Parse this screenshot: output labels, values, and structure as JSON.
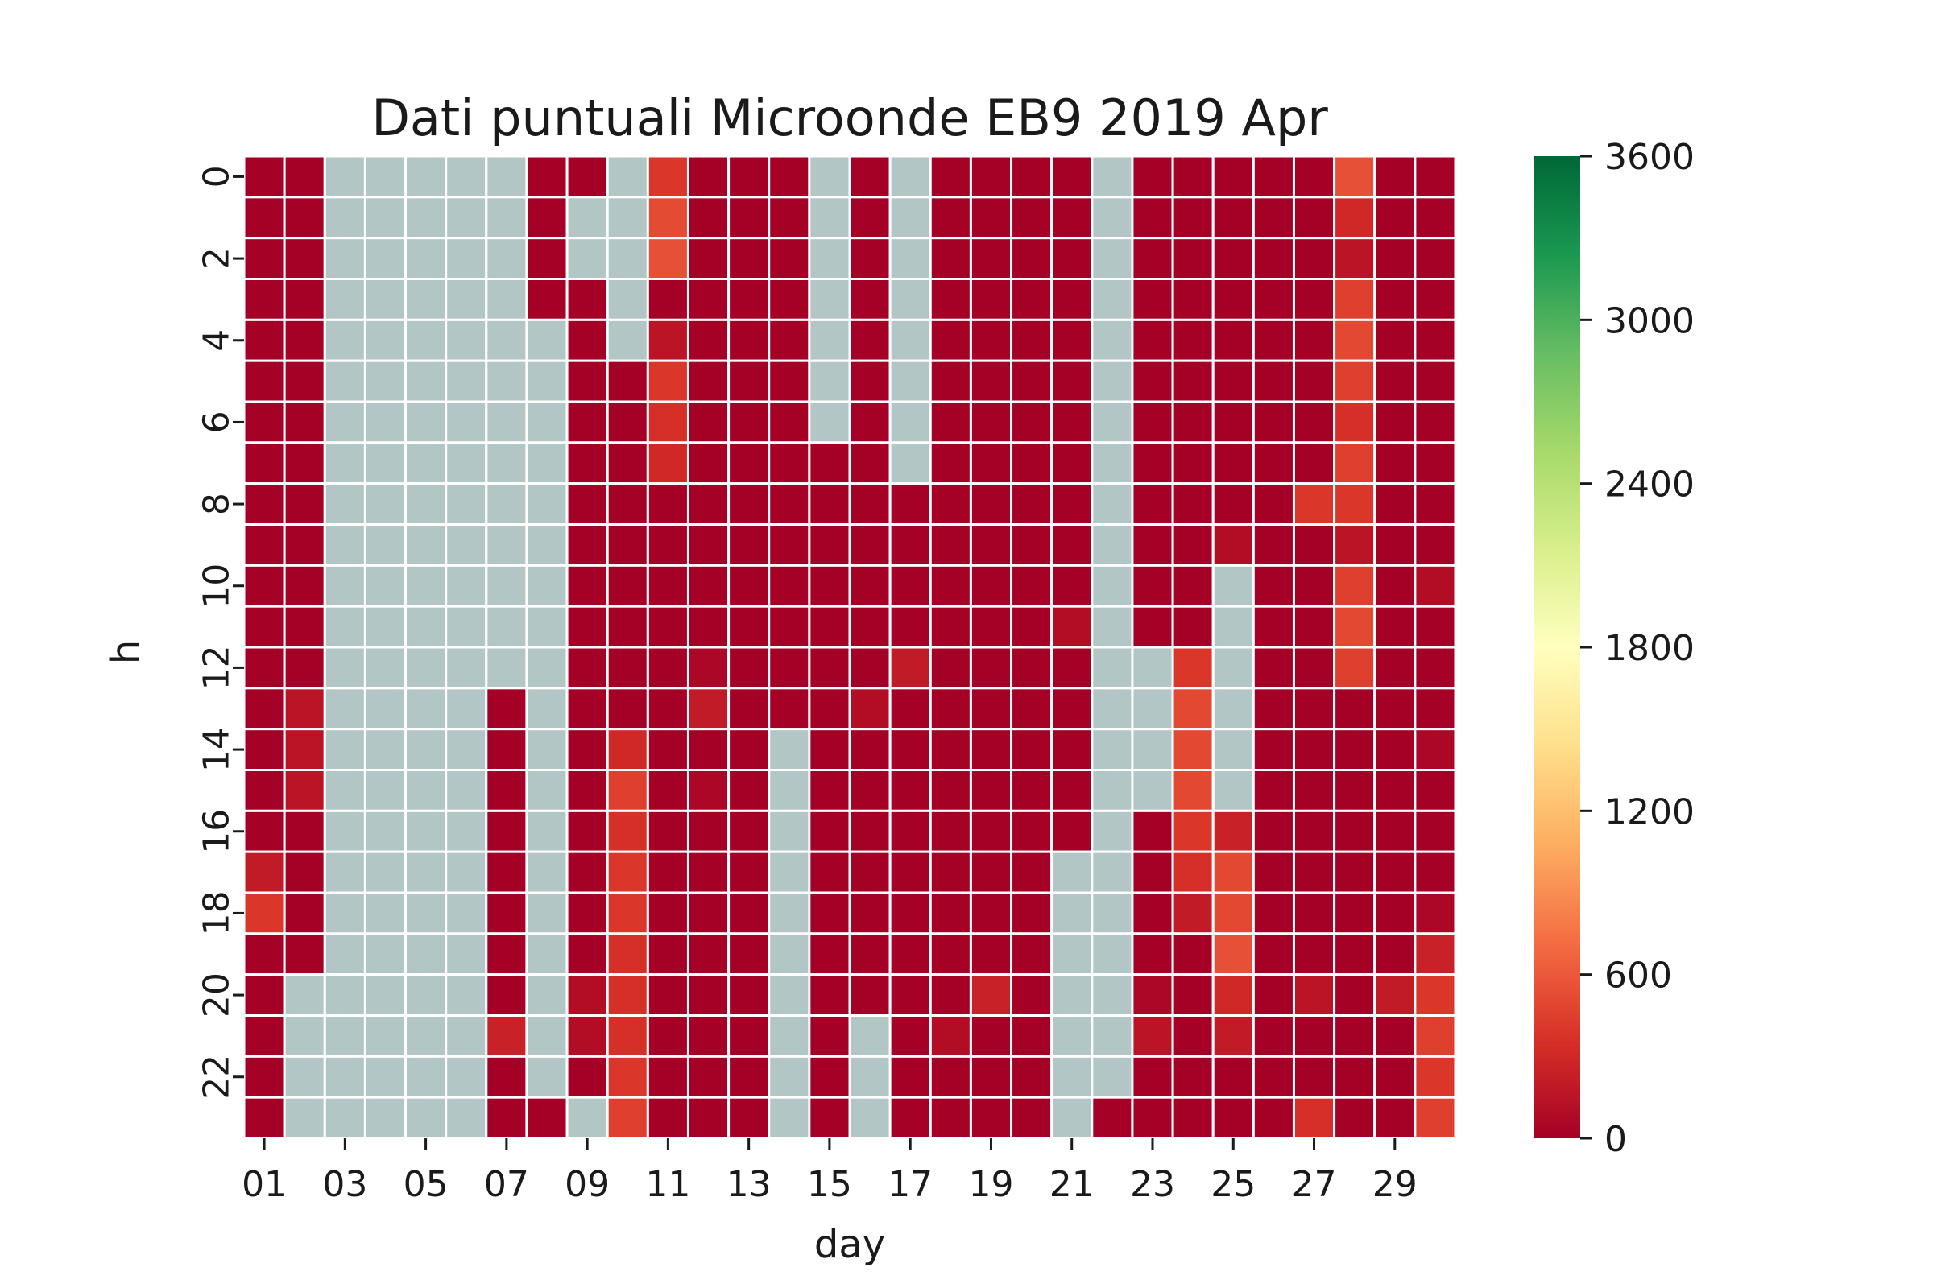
{
  "chart_data": {
    "type": "heatmap",
    "title": "Dati puntuali Microonde EB9 2019 Apr",
    "xlabel": "day",
    "ylabel": "h",
    "x_tick_labels": [
      "01",
      "03",
      "05",
      "07",
      "09",
      "11",
      "13",
      "15",
      "17",
      "19",
      "21",
      "23",
      "25",
      "27",
      "29"
    ],
    "y_tick_labels": [
      "0",
      "2",
      "4",
      "6",
      "8",
      "10",
      "12",
      "14",
      "16",
      "18",
      "20",
      "22"
    ],
    "days": [
      "01",
      "02",
      "03",
      "04",
      "05",
      "06",
      "07",
      "08",
      "09",
      "10",
      "11",
      "12",
      "13",
      "14",
      "15",
      "16",
      "17",
      "18",
      "19",
      "20",
      "21",
      "22",
      "23",
      "24",
      "25",
      "26",
      "27",
      "28",
      "29",
      "30"
    ],
    "hours": [
      0,
      1,
      2,
      3,
      4,
      5,
      6,
      7,
      8,
      9,
      10,
      11,
      12,
      13,
      14,
      15,
      16,
      17,
      18,
      19,
      20,
      21,
      22,
      23
    ],
    "value_range": [
      0,
      3600
    ],
    "colormap": "RdYlGn",
    "colormap_stops": [
      [
        0,
        "#a50026"
      ],
      [
        0.1,
        "#d73027"
      ],
      [
        0.2,
        "#f46d43"
      ],
      [
        0.3,
        "#fdae61"
      ],
      [
        0.4,
        "#fee08b"
      ],
      [
        0.5,
        "#ffffbf"
      ],
      [
        0.6,
        "#d9ef8b"
      ],
      [
        0.7,
        "#a6d96a"
      ],
      [
        0.8,
        "#66bd63"
      ],
      [
        0.9,
        "#1a9850"
      ],
      [
        1,
        "#006837"
      ]
    ],
    "missing_color": "#b3c6c6",
    "colorbar_ticks": [
      0,
      600,
      1200,
      1800,
      2400,
      3000,
      3600
    ],
    "values_by_hour": [
      [
        0,
        0,
        null,
        null,
        null,
        null,
        null,
        0,
        0,
        null,
        400,
        0,
        0,
        0,
        null,
        0,
        null,
        0,
        0,
        0,
        0,
        null,
        0,
        0,
        0,
        0,
        0,
        550,
        0,
        0
      ],
      [
        0,
        0,
        null,
        null,
        null,
        null,
        null,
        0,
        null,
        null,
        520,
        0,
        0,
        0,
        null,
        0,
        null,
        0,
        0,
        0,
        0,
        null,
        0,
        0,
        0,
        0,
        0,
        300,
        0,
        0
      ],
      [
        0,
        0,
        null,
        null,
        null,
        null,
        null,
        0,
        null,
        null,
        550,
        0,
        0,
        0,
        null,
        0,
        null,
        0,
        0,
        0,
        0,
        null,
        0,
        0,
        0,
        0,
        0,
        150,
        0,
        0
      ],
      [
        0,
        0,
        null,
        null,
        null,
        null,
        null,
        0,
        0,
        null,
        0,
        0,
        0,
        0,
        null,
        0,
        null,
        0,
        0,
        0,
        0,
        null,
        0,
        0,
        0,
        0,
        0,
        450,
        0,
        0
      ],
      [
        0,
        0,
        null,
        null,
        null,
        null,
        null,
        null,
        0,
        null,
        150,
        0,
        0,
        0,
        null,
        0,
        null,
        0,
        0,
        0,
        0,
        null,
        0,
        0,
        0,
        0,
        0,
        500,
        0,
        0
      ],
      [
        0,
        0,
        null,
        null,
        null,
        null,
        null,
        null,
        0,
        0,
        400,
        0,
        0,
        0,
        null,
        0,
        null,
        0,
        0,
        0,
        0,
        null,
        0,
        0,
        0,
        0,
        0,
        450,
        0,
        0
      ],
      [
        0,
        0,
        null,
        null,
        null,
        null,
        null,
        null,
        0,
        0,
        350,
        0,
        0,
        0,
        null,
        0,
        null,
        0,
        0,
        0,
        0,
        null,
        0,
        0,
        0,
        0,
        0,
        350,
        0,
        0
      ],
      [
        0,
        0,
        null,
        null,
        null,
        null,
        null,
        null,
        0,
        0,
        300,
        0,
        0,
        0,
        0,
        0,
        null,
        0,
        0,
        0,
        0,
        null,
        0,
        0,
        0,
        0,
        0,
        450,
        0,
        0
      ],
      [
        0,
        0,
        null,
        null,
        null,
        null,
        null,
        null,
        0,
        0,
        0,
        0,
        0,
        0,
        0,
        0,
        0,
        0,
        0,
        0,
        0,
        null,
        0,
        0,
        0,
        0,
        400,
        400,
        0,
        0
      ],
      [
        0,
        0,
        null,
        null,
        null,
        null,
        null,
        null,
        0,
        0,
        0,
        0,
        0,
        0,
        0,
        0,
        0,
        0,
        0,
        0,
        0,
        null,
        0,
        0,
        100,
        0,
        0,
        150,
        0,
        0
      ],
      [
        0,
        0,
        null,
        null,
        null,
        null,
        null,
        null,
        0,
        0,
        0,
        0,
        0,
        0,
        0,
        0,
        0,
        0,
        0,
        0,
        0,
        null,
        0,
        0,
        null,
        0,
        0,
        450,
        0,
        100
      ],
      [
        0,
        0,
        null,
        null,
        null,
        null,
        null,
        null,
        0,
        0,
        0,
        0,
        0,
        0,
        0,
        0,
        0,
        0,
        0,
        0,
        100,
        null,
        0,
        0,
        null,
        0,
        0,
        500,
        0,
        0
      ],
      [
        0,
        0,
        null,
        null,
        null,
        null,
        null,
        null,
        0,
        0,
        0,
        50,
        0,
        0,
        0,
        0,
        200,
        0,
        0,
        0,
        0,
        null,
        null,
        400,
        null,
        0,
        0,
        450,
        0,
        0
      ],
      [
        0,
        150,
        null,
        null,
        null,
        null,
        0,
        null,
        0,
        0,
        0,
        200,
        0,
        0,
        0,
        100,
        0,
        0,
        0,
        0,
        0,
        null,
        null,
        500,
        null,
        0,
        0,
        0,
        0,
        0
      ],
      [
        0,
        150,
        null,
        null,
        null,
        null,
        0,
        null,
        0,
        300,
        0,
        0,
        0,
        null,
        0,
        0,
        0,
        0,
        0,
        0,
        0,
        null,
        null,
        500,
        null,
        0,
        0,
        0,
        0,
        50
      ],
      [
        0,
        150,
        null,
        null,
        null,
        null,
        0,
        null,
        0,
        450,
        0,
        50,
        0,
        null,
        0,
        0,
        0,
        0,
        0,
        0,
        0,
        null,
        null,
        500,
        null,
        0,
        0,
        0,
        0,
        0
      ],
      [
        0,
        0,
        null,
        null,
        null,
        null,
        0,
        null,
        0,
        350,
        0,
        0,
        0,
        null,
        0,
        0,
        0,
        0,
        0,
        0,
        0,
        null,
        0,
        400,
        250,
        0,
        0,
        0,
        0,
        0
      ],
      [
        200,
        0,
        null,
        null,
        null,
        null,
        0,
        null,
        0,
        400,
        0,
        0,
        0,
        null,
        0,
        0,
        0,
        0,
        0,
        0,
        null,
        null,
        0,
        350,
        500,
        0,
        0,
        0,
        0,
        0
      ],
      [
        400,
        0,
        null,
        null,
        null,
        null,
        0,
        null,
        0,
        400,
        0,
        0,
        0,
        null,
        0,
        0,
        0,
        0,
        0,
        0,
        null,
        null,
        0,
        200,
        500,
        0,
        0,
        0,
        0,
        50
      ],
      [
        0,
        0,
        null,
        null,
        null,
        null,
        0,
        null,
        0,
        350,
        0,
        0,
        0,
        null,
        0,
        0,
        0,
        0,
        0,
        0,
        null,
        null,
        0,
        0,
        550,
        0,
        0,
        0,
        0,
        250
      ],
      [
        0,
        null,
        null,
        null,
        null,
        null,
        0,
        null,
        100,
        350,
        0,
        0,
        0,
        null,
        0,
        0,
        0,
        0,
        250,
        0,
        null,
        null,
        50,
        0,
        300,
        0,
        150,
        0,
        200,
        400
      ],
      [
        0,
        null,
        null,
        null,
        null,
        null,
        250,
        null,
        100,
        350,
        0,
        0,
        0,
        null,
        0,
        null,
        0,
        100,
        0,
        0,
        null,
        null,
        150,
        0,
        200,
        0,
        0,
        0,
        0,
        450
      ],
      [
        0,
        null,
        null,
        null,
        null,
        null,
        0,
        null,
        0,
        400,
        0,
        0,
        0,
        null,
        0,
        null,
        0,
        0,
        0,
        0,
        null,
        null,
        0,
        0,
        0,
        0,
        0,
        0,
        0,
        400
      ],
      [
        0,
        null,
        null,
        null,
        null,
        null,
        0,
        0,
        null,
        450,
        0,
        0,
        0,
        null,
        0,
        null,
        0,
        0,
        0,
        0,
        null,
        0,
        0,
        0,
        0,
        0,
        350,
        0,
        0,
        450
      ]
    ]
  }
}
